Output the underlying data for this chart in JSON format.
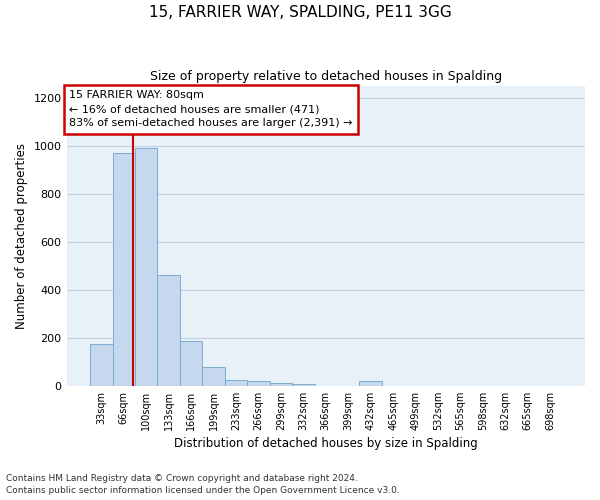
{
  "title": "15, FARRIER WAY, SPALDING, PE11 3GG",
  "subtitle": "Size of property relative to detached houses in Spalding",
  "xlabel": "Distribution of detached houses by size in Spalding",
  "ylabel": "Number of detached properties",
  "bar_color": "#c5d8ee",
  "bar_edge_color": "#7aadd4",
  "annotation_box_color": "#cc0000",
  "vertical_line_color": "#cc0000",
  "background_color": "#ffffff",
  "plot_bg_color": "#e8f0f8",
  "grid_color": "#c0d0e0",
  "categories": [
    "33sqm",
    "66sqm",
    "100sqm",
    "133sqm",
    "166sqm",
    "199sqm",
    "233sqm",
    "266sqm",
    "299sqm",
    "332sqm",
    "366sqm",
    "399sqm",
    "432sqm",
    "465sqm",
    "499sqm",
    "532sqm",
    "565sqm",
    "598sqm",
    "632sqm",
    "665sqm",
    "698sqm"
  ],
  "values": [
    175,
    970,
    990,
    460,
    185,
    80,
    25,
    18,
    12,
    8,
    0,
    0,
    18,
    0,
    0,
    0,
    0,
    0,
    0,
    0,
    0
  ],
  "annotation_line1": "15 FARRIER WAY: 80sqm",
  "annotation_line2": "← 16% of detached houses are smaller (471)",
  "annotation_line3": "83% of semi-detached houses are larger (2,391) →",
  "vertical_line_x": 1.42,
  "ylim": [
    0,
    1250
  ],
  "yticks": [
    0,
    200,
    400,
    600,
    800,
    1000,
    1200
  ],
  "footnote1": "Contains HM Land Registry data © Crown copyright and database right 2024.",
  "footnote2": "Contains public sector information licensed under the Open Government Licence v3.0."
}
